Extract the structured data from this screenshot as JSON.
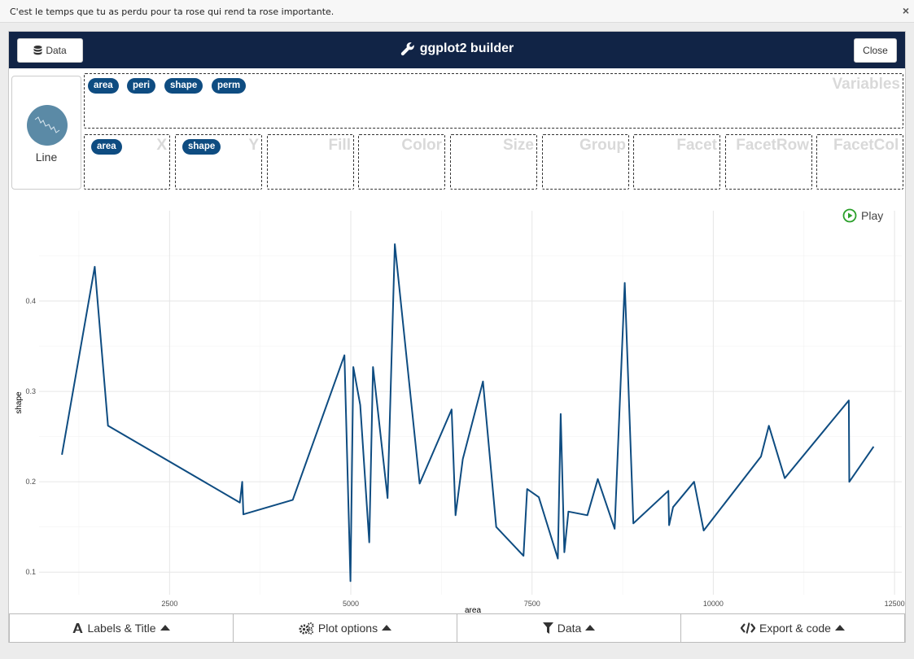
{
  "topbar": {
    "text": "C'est le temps que tu as perdu pour ta rose qui rend ta rose importante.",
    "close": "×"
  },
  "header": {
    "data_button": "Data",
    "title": "ggplot2 builder",
    "close_button": "Close"
  },
  "geom": {
    "label": "Line"
  },
  "variables": {
    "label": "Variables",
    "items": [
      "area",
      "peri",
      "shape",
      "perm"
    ]
  },
  "aesthetics": [
    {
      "label": "X",
      "value": "area"
    },
    {
      "label": "Y",
      "value": "shape"
    },
    {
      "label": "Fill",
      "value": ""
    },
    {
      "label": "Color",
      "value": ""
    },
    {
      "label": "Size",
      "value": ""
    },
    {
      "label": "Group",
      "value": ""
    },
    {
      "label": "Facet",
      "value": ""
    },
    {
      "label": "FacetRow",
      "value": ""
    },
    {
      "label": "FacetCol",
      "value": ""
    }
  ],
  "play_label": "Play",
  "footer": {
    "labels": "Labels & Title",
    "options": "Plot options",
    "data": "Data",
    "export": "Export & code"
  },
  "colors": {
    "header": "#112446",
    "badge": "#0e4c81",
    "line": "#0e4c81",
    "play": "#2ca02c"
  },
  "chart_data": {
    "type": "line",
    "xlabel": "area",
    "ylabel": "shape",
    "xlim": [
      700,
      12600
    ],
    "ylim": [
      0.075,
      0.5
    ],
    "x_ticks": [
      2500,
      5000,
      7500,
      10000,
      12500
    ],
    "y_ticks": [
      0.1,
      0.2,
      0.3,
      0.4
    ],
    "grid": true,
    "x": [
      1016,
      1468,
      1651,
      3469,
      3502,
      3518,
      4199,
      4912,
      4995,
      5034,
      5130,
      5254,
      5306,
      5507,
      5607,
      5950,
      6391,
      6444,
      6545,
      6823,
      7006,
      7382,
      7432,
      7593,
      7856,
      7895,
      7946,
      8002,
      8263,
      8407,
      8639,
      8779,
      8897,
      9380,
      9390,
      9445,
      9735,
      9867,
      10658,
      10767,
      10986,
      11869,
      11876,
      12212
    ],
    "y": [
      0.23,
      0.438,
      0.262,
      0.177,
      0.2,
      0.164,
      0.18,
      0.34,
      0.09,
      0.327,
      0.285,
      0.133,
      0.327,
      0.182,
      0.463,
      0.198,
      0.28,
      0.163,
      0.225,
      0.311,
      0.15,
      0.118,
      0.192,
      0.183,
      0.115,
      0.275,
      0.122,
      0.167,
      0.163,
      0.203,
      0.148,
      0.42,
      0.154,
      0.19,
      0.152,
      0.172,
      0.2,
      0.146,
      0.228,
      0.262,
      0.204,
      0.29,
      0.2,
      0.239
    ]
  }
}
